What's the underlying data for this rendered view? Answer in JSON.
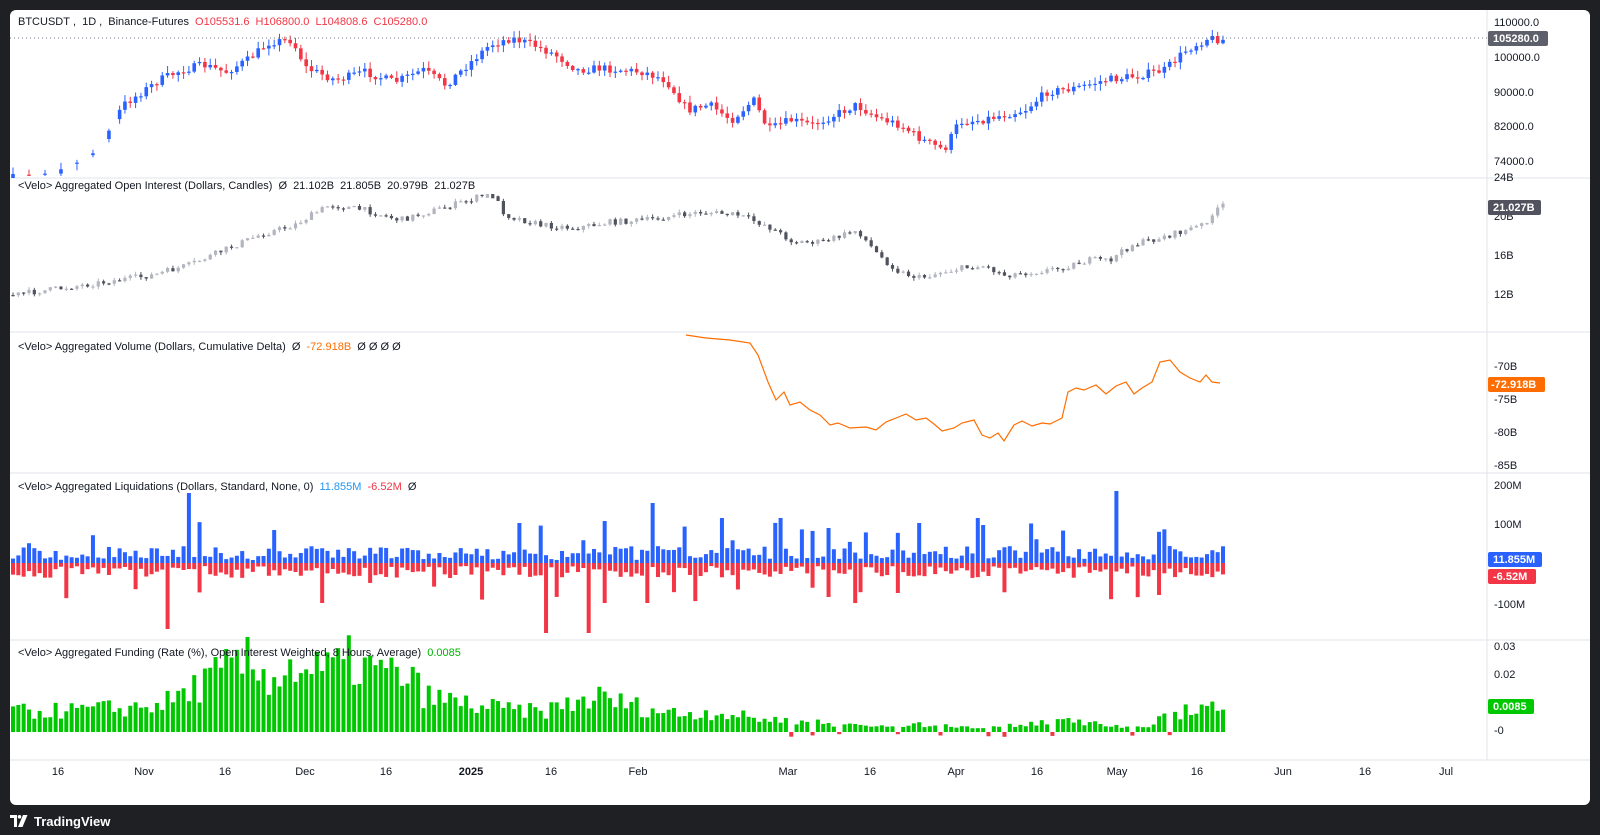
{
  "main": {
    "symbol": "BTCUSDT",
    "interval": "1D",
    "exchange": "Binance-Futures",
    "open": "O105531.6",
    "high": "H106800.0",
    "low": "L104808.6",
    "close": "C105280.0",
    "last_badge": "105280.0",
    "y_ticks": [
      "110000.0",
      "100000.0",
      "90000.0",
      "82000.0",
      "74000.0"
    ]
  },
  "open_interest": {
    "title": "<Velo> Aggregated Open Interest (Dollars, Candles)",
    "slash": "Ø",
    "v1": "21.102B",
    "v2": "21.805B",
    "v3": "20.979B",
    "v4": "21.027B",
    "badge": "21.027B",
    "y_ticks": [
      "24B",
      "20B",
      "16B",
      "12B"
    ]
  },
  "volume": {
    "title": "<Velo> Aggregated Volume (Dollars, Cumulative Delta)",
    "slash": "Ø",
    "value": "-72.918B",
    "rest": "Ø Ø Ø Ø",
    "badge": "-72.918B",
    "y_ticks": [
      "-70B",
      "-75B",
      "-80B",
      "-85B"
    ]
  },
  "liquidations": {
    "title": "<Velo> Aggregated Liquidations (Dollars, Standard, None, 0)",
    "pos": "11.855M",
    "neg": "-6.52M",
    "slash": "Ø",
    "badge_pos": "11.855M",
    "badge_neg": "-6.52M",
    "y_ticks": [
      "200M",
      "100M",
      "-100M"
    ]
  },
  "funding": {
    "title": "<Velo> Aggregated Funding (Rate (%), Open Interest Weighted, 8 Hours, Average)",
    "value": "0.0085",
    "badge": "0.0085",
    "y_ticks": [
      "0.03",
      "0.02",
      "-0"
    ]
  },
  "time_axis": [
    "16",
    "Nov",
    "16",
    "Dec",
    "16",
    "2025",
    "16",
    "Feb",
    "Mar",
    "16",
    "Apr",
    "16",
    "May",
    "16",
    "Jun",
    "16",
    "Jul"
  ],
  "brand": "TradingView",
  "colors": {
    "up": "#2962ff",
    "down": "#f23645",
    "oi": "#787b86",
    "delta": "#ff6d00",
    "funding_pos": "#00c800",
    "funding_neg": "#f23645"
  }
}
